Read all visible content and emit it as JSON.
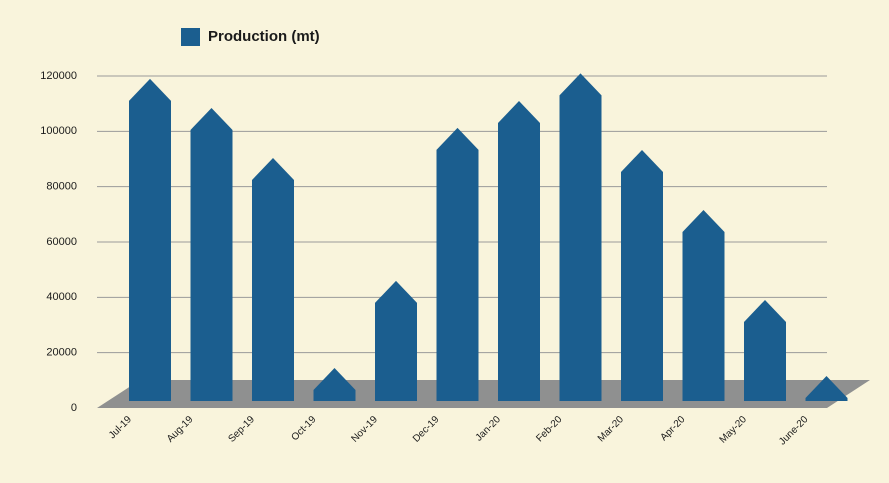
{
  "chart_data": {
    "type": "bar",
    "categories": [
      "Jul-19",
      "Aug-19",
      "Sep-19",
      "Oct-19",
      "Nov-19",
      "Dec-19",
      "Jan-20",
      "Feb-20",
      "Mar-20",
      "Apr-20",
      "May-20",
      "June-20"
    ],
    "series": [
      {
        "name": "Production (mt)",
        "color": "#1b5e8f",
        "values": [
          111000,
          100500,
          82400,
          6500,
          38000,
          93300,
          103000,
          113000,
          85300,
          63600,
          31100,
          3600
        ]
      }
    ],
    "ylim": [
      0,
      120000
    ],
    "yticks": [
      0,
      20000,
      40000,
      60000,
      80000,
      100000,
      120000
    ],
    "grid": true
  }
}
